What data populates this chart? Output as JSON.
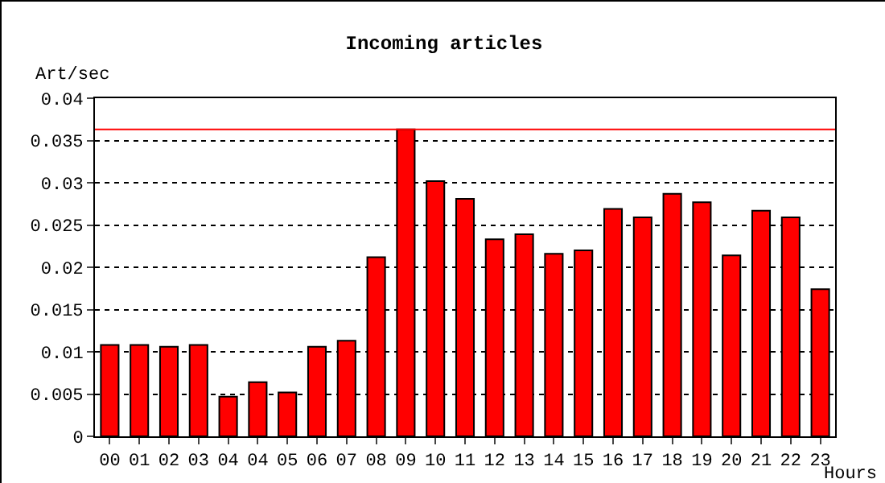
{
  "chart_data": {
    "type": "bar",
    "title": "Incoming articles",
    "ylabel": "Art/sec",
    "xlabel": "Hours",
    "categories": [
      "00",
      "01",
      "02",
      "03",
      "04",
      "04",
      "05",
      "06",
      "07",
      "08",
      "09",
      "10",
      "11",
      "12",
      "13",
      "14",
      "15",
      "16",
      "17",
      "18",
      "19",
      "20",
      "21",
      "22",
      "23"
    ],
    "values": [
      0.0108,
      0.0108,
      0.0106,
      0.0108,
      0.0047,
      0.0064,
      0.0052,
      0.0106,
      0.0113,
      0.0212,
      0.0363,
      0.0302,
      0.0281,
      0.0233,
      0.0239,
      0.0216,
      0.022,
      0.0269,
      0.0259,
      0.0287,
      0.0277,
      0.0214,
      0.0267,
      0.0259,
      0.0174
    ],
    "color": "#ff0000",
    "ylim": [
      0,
      0.04
    ],
    "yticks": [
      0,
      0.005,
      0.01,
      0.015,
      0.02,
      0.025,
      0.03,
      0.035,
      0.04
    ],
    "ref_lines": [
      {
        "axis": "y",
        "value": 0.0363,
        "color": "#ff0000"
      }
    ],
    "grid": "y",
    "legend": false
  }
}
